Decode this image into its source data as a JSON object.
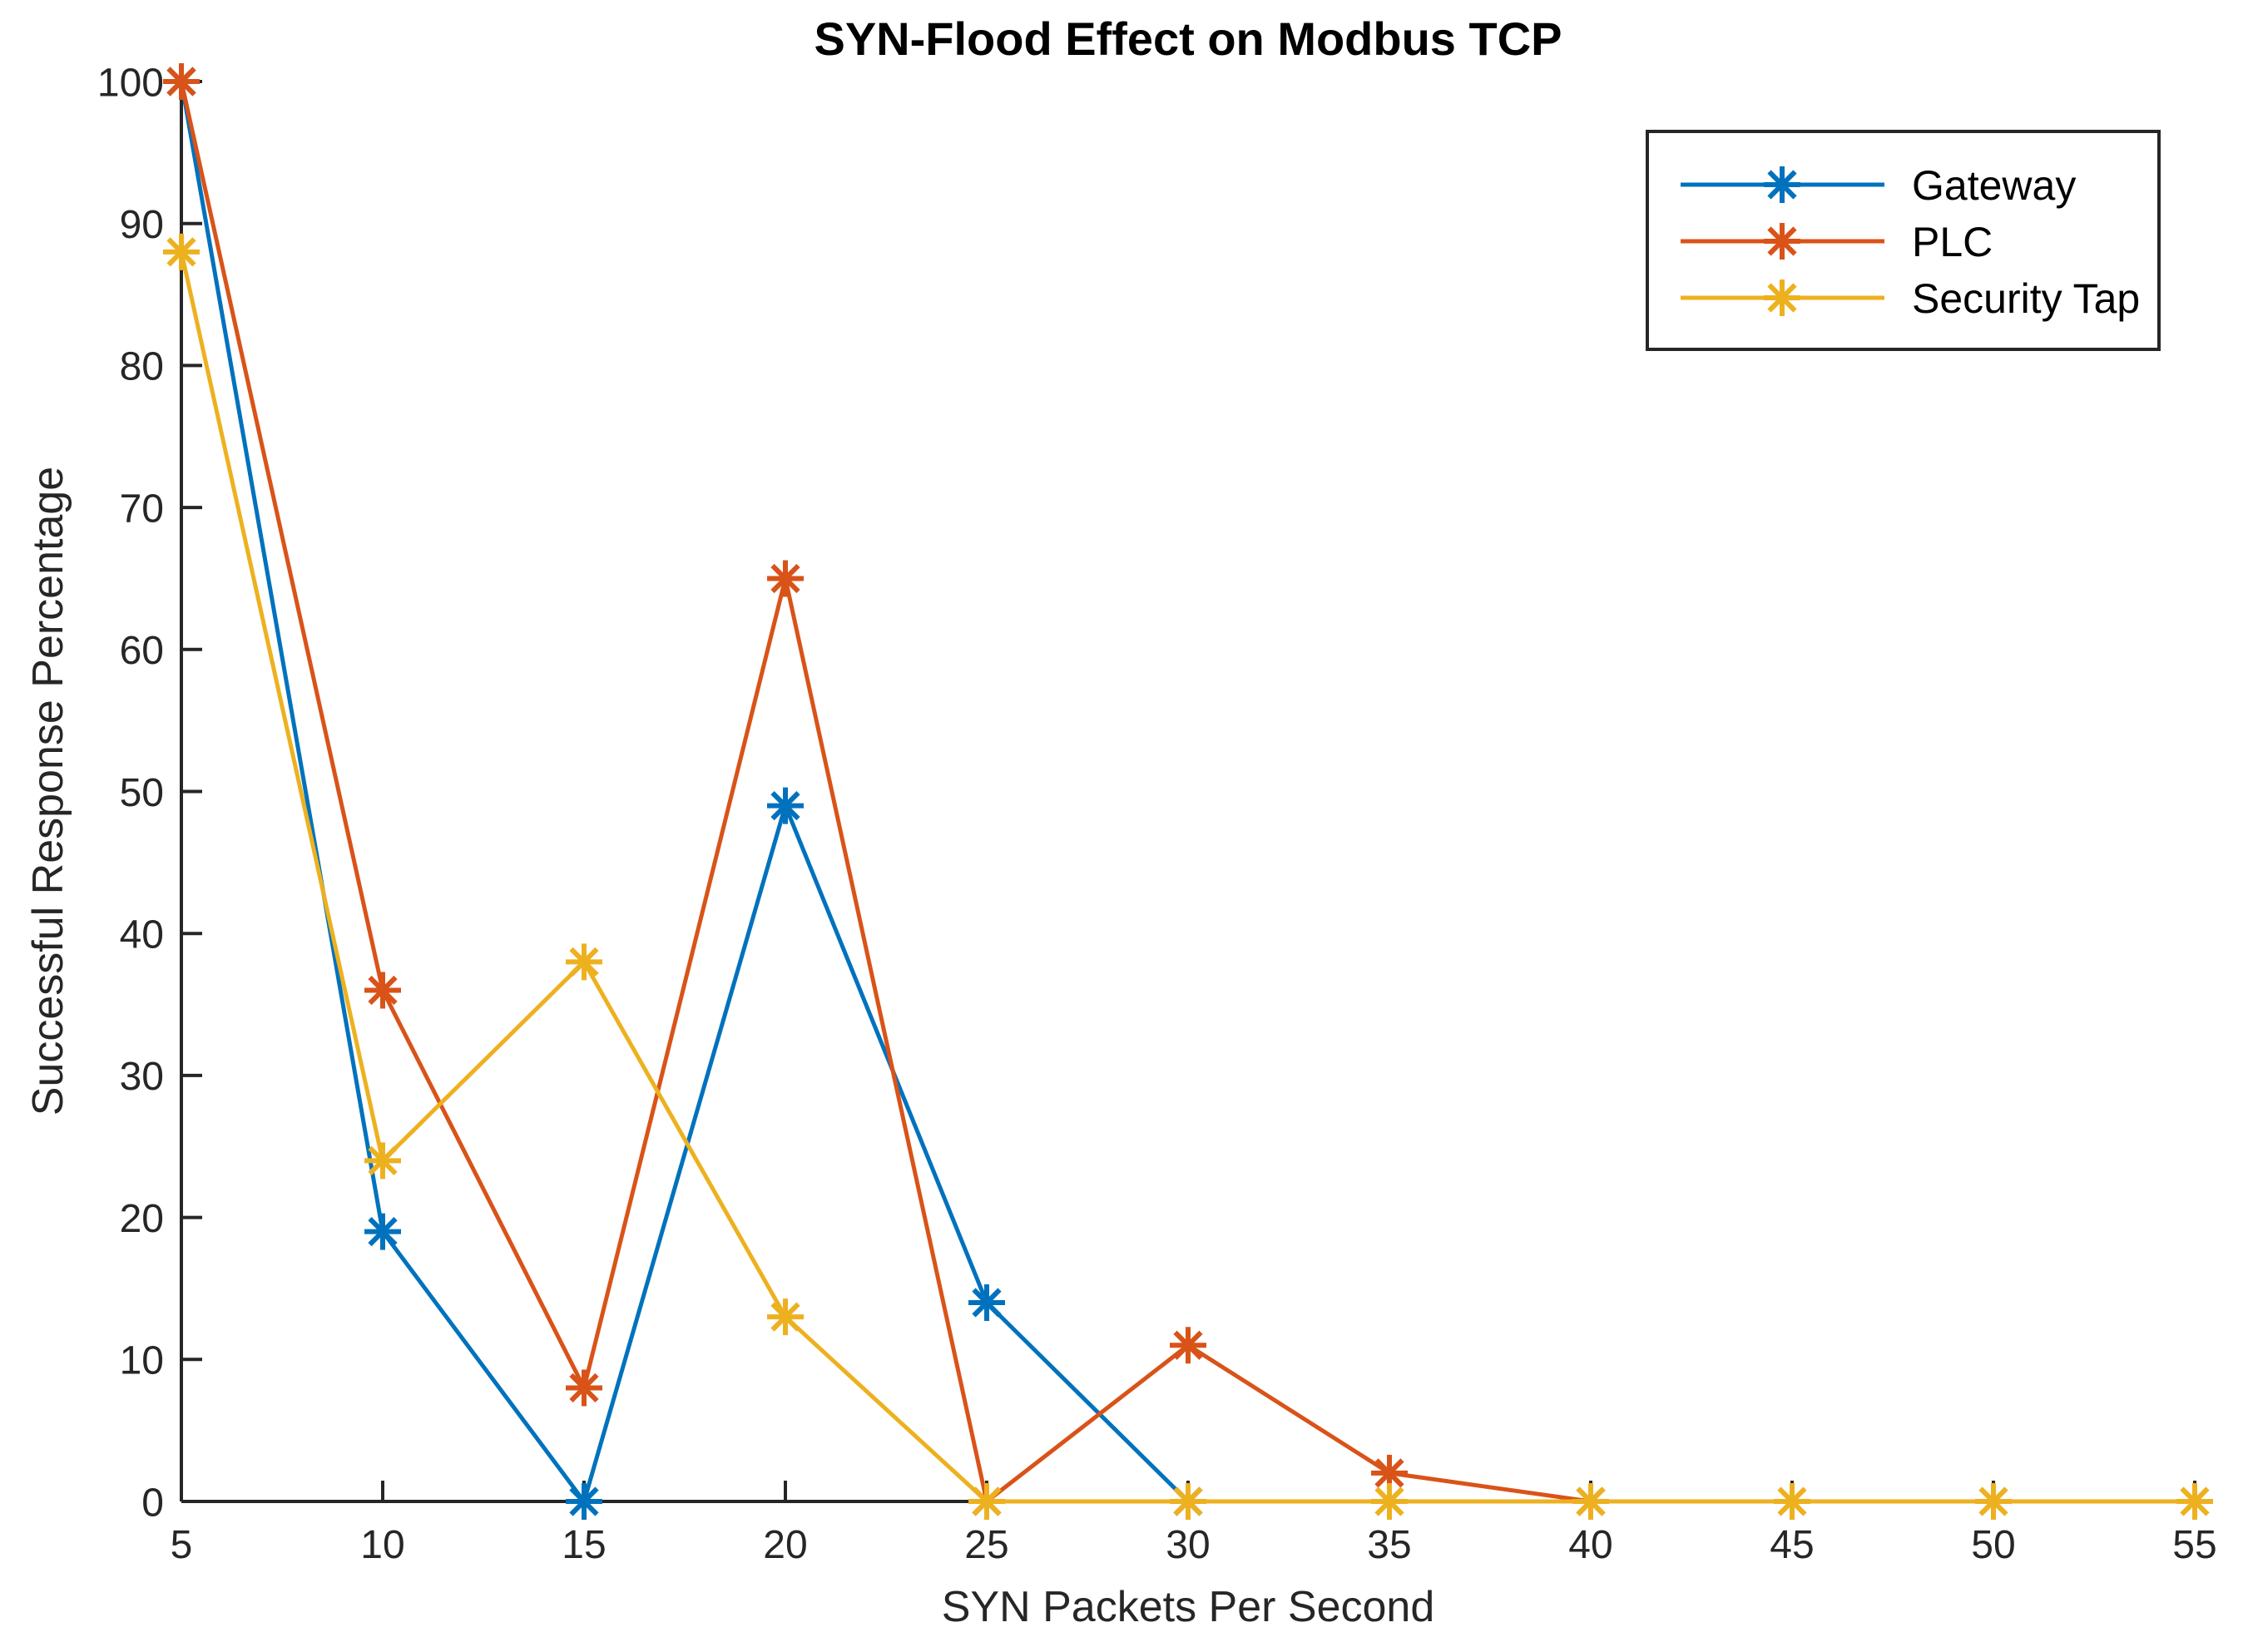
{
  "figure": {
    "background": "#ffffff",
    "axes_color": "#262626",
    "title_color": "#000000"
  },
  "chart_data": {
    "type": "line",
    "title": "SYN-Flood Effect on Modbus TCP",
    "xlabel": "SYN Packets Per Second",
    "ylabel": "Successful Response Percentage",
    "xlim": [
      5,
      55
    ],
    "ylim": [
      0,
      100
    ],
    "xticks": [
      5,
      10,
      15,
      20,
      25,
      30,
      35,
      40,
      45,
      50,
      55
    ],
    "yticks": [
      0,
      10,
      20,
      30,
      40,
      50,
      60,
      70,
      80,
      90,
      100
    ],
    "grid": false,
    "box": false,
    "marker": "asterisk",
    "legend_position": "top-right",
    "legend_entries": [
      "Gateway",
      "PLC",
      "Security Tap"
    ],
    "series": [
      {
        "name": "Gateway",
        "color": "#0072BD",
        "x": [
          5,
          10,
          15,
          20,
          25,
          30
        ],
        "values": [
          100,
          19,
          0,
          49,
          14,
          0
        ]
      },
      {
        "name": "PLC",
        "color": "#D95319",
        "x": [
          5,
          10,
          15,
          20,
          25,
          30,
          35,
          40
        ],
        "values": [
          100,
          36,
          8,
          65,
          0,
          11,
          2,
          0
        ]
      },
      {
        "name": "Security Tap",
        "color": "#EDB120",
        "x": [
          5,
          10,
          15,
          20,
          25,
          30,
          35,
          40,
          45,
          50,
          55
        ],
        "values": [
          88,
          24,
          38,
          13,
          0,
          0,
          0,
          0,
          0,
          0,
          0
        ]
      }
    ]
  }
}
